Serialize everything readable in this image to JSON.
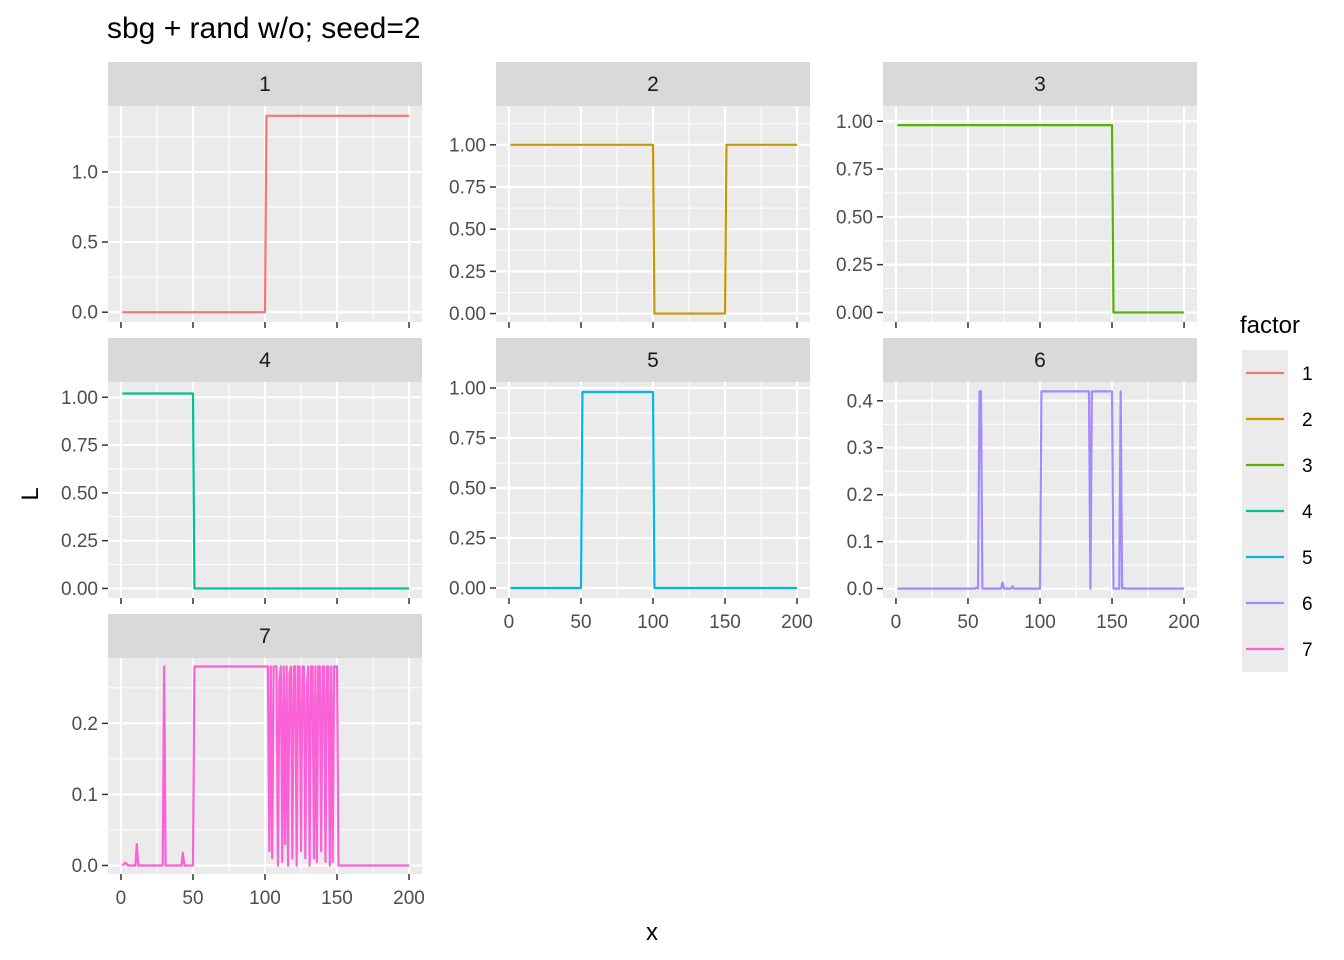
{
  "chart_data": {
    "type": "line",
    "title": "sbg + rand  w/o; seed=2",
    "xlabel": "x",
    "ylabel": "L",
    "legend": {
      "title": "factor",
      "position": "right",
      "entries": [
        "1",
        "2",
        "3",
        "4",
        "5",
        "6",
        "7"
      ]
    },
    "colors": [
      "#F8766D",
      "#C49A00",
      "#53B400",
      "#00C094",
      "#00B6EB",
      "#A58AFF",
      "#FB61D7"
    ],
    "facets": [
      {
        "label": "1",
        "xlim": [
          -9,
          209
        ],
        "ylim": [
          -0.07,
          1.47
        ],
        "yticks": [
          0.0,
          0.5,
          1.0
        ],
        "ytick_labels": [
          "0.0",
          "0.5",
          "1.0"
        ],
        "xticks": [],
        "xtick_labels": [],
        "series": [
          [
            1,
            0
          ],
          [
            100,
            0
          ],
          [
            101,
            1.4
          ],
          [
            200,
            1.4
          ]
        ]
      },
      {
        "label": "2",
        "xlim": [
          -9,
          209
        ],
        "ylim": [
          -0.05,
          1.23
        ],
        "yticks": [
          0.0,
          0.25,
          0.5,
          0.75,
          1.0
        ],
        "ytick_labels": [
          "0.00",
          "0.25",
          "0.50",
          "0.75",
          "1.00"
        ],
        "xticks": [],
        "xtick_labels": [],
        "series": [
          [
            1,
            1.0
          ],
          [
            100,
            1.0
          ],
          [
            101,
            0
          ],
          [
            150,
            0
          ],
          [
            151,
            1.0
          ],
          [
            200,
            1.0
          ]
        ]
      },
      {
        "label": "3",
        "xlim": [
          -9,
          209
        ],
        "ylim": [
          -0.05,
          1.08
        ],
        "yticks": [
          0.0,
          0.25,
          0.5,
          0.75,
          1.0
        ],
        "ytick_labels": [
          "0.00",
          "0.25",
          "0.50",
          "0.75",
          "1.00"
        ],
        "xticks": [],
        "xtick_labels": [],
        "series": [
          [
            1,
            0.98
          ],
          [
            150,
            0.98
          ],
          [
            151,
            0
          ],
          [
            200,
            0
          ]
        ]
      },
      {
        "label": "4",
        "xlim": [
          -9,
          209
        ],
        "ylim": [
          -0.05,
          1.08
        ],
        "yticks": [
          0.0,
          0.25,
          0.5,
          0.75,
          1.0
        ],
        "ytick_labels": [
          "0.00",
          "0.25",
          "0.50",
          "0.75",
          "1.00"
        ],
        "xticks": [],
        "xtick_labels": [],
        "series": [
          [
            1,
            1.02
          ],
          [
            50,
            1.02
          ],
          [
            51,
            0
          ],
          [
            200,
            0
          ]
        ]
      },
      {
        "label": "5",
        "xlim": [
          -9,
          209
        ],
        "ylim": [
          -0.05,
          1.03
        ],
        "yticks": [
          0.0,
          0.25,
          0.5,
          0.75,
          1.0
        ],
        "ytick_labels": [
          "0.00",
          "0.25",
          "0.50",
          "0.75",
          "1.00"
        ],
        "xticks": [
          0,
          50,
          100,
          150,
          200
        ],
        "xtick_labels": [
          "0",
          "50",
          "100",
          "150",
          "200"
        ],
        "series": [
          [
            1,
            0
          ],
          [
            50,
            0
          ],
          [
            51,
            0.98
          ],
          [
            100,
            0.98
          ],
          [
            101,
            0
          ],
          [
            200,
            0
          ]
        ]
      },
      {
        "label": "6",
        "xlim": [
          -9,
          209
        ],
        "ylim": [
          -0.02,
          0.44
        ],
        "yticks": [
          0.0,
          0.1,
          0.2,
          0.3,
          0.4
        ],
        "ytick_labels": [
          "0.0",
          "0.1",
          "0.2",
          "0.3",
          "0.4"
        ],
        "xticks": [
          0,
          50,
          100,
          150,
          200
        ],
        "xtick_labels": [
          "0",
          "50",
          "100",
          "150",
          "200"
        ],
        "series": [
          [
            1,
            0
          ],
          [
            55,
            0
          ],
          [
            56,
            0.002
          ],
          [
            57,
            0
          ],
          [
            58,
            0.42
          ],
          [
            59,
            0.42
          ],
          [
            60,
            0
          ],
          [
            73,
            0
          ],
          [
            74,
            0.013
          ],
          [
            75,
            0
          ],
          [
            80,
            0
          ],
          [
            81,
            0.005
          ],
          [
            82,
            0
          ],
          [
            100,
            0
          ],
          [
            101,
            0.42
          ],
          [
            134,
            0.42
          ],
          [
            135,
            0
          ],
          [
            136,
            0.42
          ],
          [
            150,
            0.42
          ],
          [
            151,
            0
          ],
          [
            155,
            0
          ],
          [
            156,
            0.42
          ],
          [
            157,
            0
          ],
          [
            158,
            0.002
          ],
          [
            159,
            0
          ],
          [
            200,
            0
          ]
        ]
      },
      {
        "label": "7",
        "xlim": [
          -9,
          209
        ],
        "ylim": [
          -0.012,
          0.292
        ],
        "yticks": [
          0.0,
          0.1,
          0.2
        ],
        "ytick_labels": [
          "0.0",
          "0.1",
          "0.2"
        ],
        "xticks": [
          0,
          50,
          100,
          150,
          200
        ],
        "xtick_labels": [
          "0",
          "50",
          "100",
          "150",
          "200"
        ],
        "series": [
          [
            1,
            0
          ],
          [
            3,
            0.004
          ],
          [
            5,
            0
          ],
          [
            10,
            0
          ],
          [
            11,
            0.03
          ],
          [
            12,
            0
          ],
          [
            29,
            0
          ],
          [
            30,
            0.28
          ],
          [
            31,
            0
          ],
          [
            42,
            0
          ],
          [
            43,
            0.018
          ],
          [
            44,
            0
          ],
          [
            50,
            0
          ],
          [
            51,
            0.28
          ],
          [
            100,
            0.28
          ],
          [
            102,
            0.28
          ],
          [
            103,
            0.02
          ],
          [
            104,
            0.28
          ],
          [
            105,
            0.01
          ],
          [
            106,
            0.28
          ],
          [
            108,
            0.28
          ],
          [
            109,
            0
          ],
          [
            110,
            0.26
          ],
          [
            111,
            0.28
          ],
          [
            112,
            0.005
          ],
          [
            113,
            0.28
          ],
          [
            114,
            0.03
          ],
          [
            115,
            0.28
          ],
          [
            116,
            0
          ],
          [
            117,
            0.27
          ],
          [
            118,
            0.28
          ],
          [
            119,
            0.01
          ],
          [
            120,
            0.28
          ],
          [
            121,
            0.28
          ],
          [
            122,
            0
          ],
          [
            123,
            0.28
          ],
          [
            124,
            0.28
          ],
          [
            125,
            0.02
          ],
          [
            126,
            0.28
          ],
          [
            127,
            0.28
          ],
          [
            128,
            0.01
          ],
          [
            129,
            0.25
          ],
          [
            130,
            0.28
          ],
          [
            131,
            0
          ],
          [
            132,
            0.28
          ],
          [
            133,
            0.28
          ],
          [
            134,
            0.01
          ],
          [
            135,
            0.28
          ],
          [
            136,
            0.005
          ],
          [
            137,
            0.28
          ],
          [
            138,
            0.28
          ],
          [
            139,
            0.02
          ],
          [
            140,
            0.28
          ],
          [
            141,
            0.28
          ],
          [
            142,
            0.005
          ],
          [
            143,
            0.28
          ],
          [
            144,
            0.28
          ],
          [
            145,
            0
          ],
          [
            146,
            0.28
          ],
          [
            147,
            0.005
          ],
          [
            148,
            0.28
          ],
          [
            149,
            0.28
          ],
          [
            150,
            0.28
          ],
          [
            151,
            0
          ],
          [
            200,
            0
          ]
        ]
      }
    ]
  }
}
